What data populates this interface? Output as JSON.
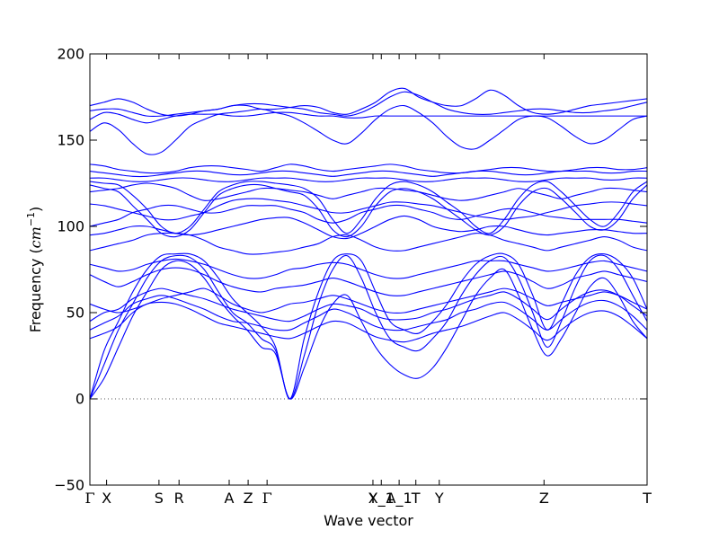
{
  "chart_data": {
    "type": "line",
    "title": "",
    "xlabel": "Wave vector",
    "ylabel": "Frequency",
    "ylabel_unit_base": "cm",
    "ylabel_unit_exp": "−1",
    "ylim": [
      -50,
      200
    ],
    "y_ticks": [
      -50,
      0,
      50,
      100,
      150,
      200
    ],
    "x_range": [
      0,
      1
    ],
    "grid": false,
    "legend": "none",
    "line_color": "#0000ff",
    "zero_line_color": "#555555",
    "high_symmetry_points": [
      {
        "label": "Γ",
        "x": 0.0
      },
      {
        "label": "X",
        "x": 0.03
      },
      {
        "label": "S",
        "x": 0.124
      },
      {
        "label": "R",
        "x": 0.16
      },
      {
        "label": "A",
        "x": 0.25
      },
      {
        "label": "Z",
        "x": 0.284
      },
      {
        "label": "Γ",
        "x": 0.318
      },
      {
        "label": "Y",
        "x": 0.508
      },
      {
        "label": "X_1",
        "x": 0.523
      },
      {
        "label": "A_1",
        "x": 0.555
      },
      {
        "label": "T",
        "x": 0.585
      },
      {
        "label": "Y",
        "x": 0.627
      },
      {
        "label": "Z",
        "x": 0.815
      },
      {
        "label": "T",
        "x": 1.0
      }
    ],
    "series": [
      {
        "values": [
          0,
          12,
          30,
          48,
          62,
          75,
          80,
          78,
          70,
          58,
          48,
          40,
          30,
          26,
          0,
          18,
          40,
          55,
          60,
          45,
          30,
          20,
          14,
          12,
          18,
          30,
          45,
          60,
          70,
          75,
          60,
          40,
          25,
          35,
          50,
          65,
          70,
          60,
          45,
          35
        ]
      },
      {
        "values": [
          0,
          20,
          40,
          55,
          70,
          80,
          83,
          82,
          75,
          62,
          50,
          44,
          35,
          28,
          0,
          25,
          55,
          75,
          83,
          70,
          50,
          35,
          30,
          28,
          35,
          45,
          60,
          72,
          80,
          82,
          70,
          50,
          30,
          45,
          65,
          80,
          83,
          75,
          60,
          45
        ]
      },
      {
        "values": [
          0,
          28,
          45,
          62,
          75,
          83,
          84,
          84,
          80,
          70,
          58,
          50,
          42,
          30,
          0,
          35,
          62,
          80,
          84,
          80,
          62,
          45,
          40,
          38,
          45,
          55,
          68,
          78,
          83,
          84,
          78,
          60,
          40,
          55,
          72,
          82,
          84,
          80,
          70,
          52
        ]
      },
      {
        "values": [
          35,
          38,
          42,
          50,
          55,
          56,
          55,
          52,
          48,
          44,
          42,
          40,
          38,
          36,
          35,
          38,
          42,
          45,
          44,
          40,
          36,
          34,
          33,
          35,
          38,
          40,
          42,
          45,
          48,
          50,
          46,
          40,
          34,
          40,
          46,
          50,
          51,
          48,
          42,
          35
        ]
      },
      {
        "values": [
          40,
          44,
          48,
          55,
          58,
          60,
          58,
          55,
          52,
          48,
          45,
          44,
          42,
          40,
          40,
          44,
          48,
          52,
          50,
          46,
          42,
          40,
          40,
          42,
          44,
          46,
          50,
          52,
          55,
          56,
          52,
          46,
          40,
          46,
          52,
          56,
          57,
          54,
          48,
          40
        ]
      },
      {
        "values": [
          45,
          50,
          52,
          58,
          62,
          64,
          62,
          60,
          58,
          55,
          52,
          50,
          48,
          46,
          45,
          48,
          52,
          55,
          54,
          52,
          48,
          46,
          46,
          47,
          50,
          52,
          55,
          58,
          60,
          62,
          58,
          52,
          46,
          52,
          58,
          62,
          63,
          60,
          54,
          48
        ]
      },
      {
        "values": [
          55,
          52,
          50,
          52,
          55,
          58,
          60,
          62,
          64,
          60,
          55,
          52,
          50,
          52,
          55,
          56,
          58,
          60,
          58,
          55,
          52,
          50,
          50,
          52,
          54,
          56,
          58,
          60,
          62,
          64,
          62,
          58,
          54,
          56,
          58,
          60,
          62,
          60,
          56,
          52
        ]
      },
      {
        "values": [
          72,
          68,
          65,
          68,
          72,
          75,
          76,
          75,
          72,
          68,
          65,
          63,
          62,
          64,
          65,
          66,
          68,
          70,
          68,
          65,
          62,
          60,
          60,
          62,
          64,
          66,
          68,
          70,
          72,
          74,
          72,
          68,
          64,
          66,
          70,
          72,
          74,
          72,
          70,
          68
        ]
      },
      {
        "values": [
          78,
          76,
          74,
          75,
          78,
          80,
          81,
          80,
          78,
          75,
          72,
          70,
          70,
          72,
          75,
          76,
          78,
          79,
          78,
          75,
          72,
          70,
          70,
          72,
          74,
          76,
          78,
          80,
          80,
          80,
          78,
          76,
          74,
          75,
          77,
          79,
          80,
          78,
          76,
          74
        ]
      },
      {
        "values": [
          86,
          88,
          90,
          92,
          95,
          96,
          96,
          95,
          92,
          88,
          86,
          84,
          84,
          85,
          86,
          88,
          90,
          94,
          95,
          92,
          88,
          86,
          86,
          88,
          90,
          92,
          94,
          96,
          95,
          92,
          90,
          88,
          86,
          88,
          90,
          92,
          94,
          92,
          88,
          86
        ]
      },
      {
        "values": [
          95,
          96,
          98,
          100,
          100,
          98,
          96,
          95,
          96,
          98,
          100,
          102,
          104,
          105,
          105,
          102,
          98,
          94,
          93,
          96,
          100,
          104,
          106,
          104,
          100,
          98,
          97,
          98,
          100,
          100,
          98,
          96,
          95,
          96,
          97,
          98,
          98,
          97,
          96,
          96
        ]
      },
      {
        "values": [
          100,
          102,
          104,
          108,
          110,
          112,
          112,
          110,
          108,
          108,
          110,
          112,
          112,
          112,
          110,
          108,
          104,
          102,
          104,
          108,
          110,
          112,
          112,
          110,
          108,
          105,
          104,
          106,
          108,
          110,
          110,
          108,
          106,
          105,
          104,
          104,
          104,
          104,
          103,
          102
        ]
      },
      {
        "values": [
          113,
          112,
          110,
          108,
          106,
          104,
          104,
          106,
          108,
          112,
          115,
          116,
          116,
          115,
          114,
          112,
          110,
          108,
          108,
          110,
          112,
          114,
          114,
          113,
          112,
          110,
          108,
          106,
          105,
          104,
          105,
          106,
          108,
          110,
          112,
          113,
          114,
          114,
          113,
          112
        ]
      },
      {
        "values": [
          120,
          121,
          122,
          124,
          125,
          124,
          122,
          118,
          115,
          116,
          118,
          120,
          122,
          122,
          121,
          120,
          118,
          116,
          118,
          120,
          122,
          122,
          121,
          120,
          118,
          116,
          115,
          116,
          118,
          120,
          122,
          120,
          118,
          116,
          118,
          120,
          122,
          122,
          121,
          120
        ]
      },
      {
        "values": [
          124,
          122,
          120,
          112,
          104,
          96,
          94,
          98,
          108,
          118,
          122,
          124,
          124,
          122,
          120,
          118,
          110,
          98,
          94,
          100,
          112,
          120,
          122,
          120,
          116,
          110,
          104,
          98,
          95,
          100,
          112,
          120,
          122,
          116,
          108,
          100,
          98,
          104,
          116,
          124
        ]
      },
      {
        "values": [
          126,
          125,
          124,
          118,
          110,
          100,
          96,
          100,
          110,
          120,
          124,
          126,
          126,
          125,
          124,
          122,
          116,
          104,
          96,
          104,
          116,
          124,
          126,
          124,
          120,
          114,
          108,
          100,
          96,
          104,
          116,
          124,
          126,
          120,
          112,
          104,
          100,
          108,
          120,
          126
        ]
      },
      {
        "values": [
          128,
          128,
          127,
          126,
          126,
          127,
          128,
          128,
          127,
          126,
          126,
          127,
          128,
          128,
          128,
          127,
          126,
          126,
          127,
          128,
          128,
          128,
          127,
          126,
          126,
          127,
          128,
          128,
          128,
          127,
          126,
          126,
          127,
          128,
          128,
          128,
          127,
          127,
          128,
          128
        ]
      },
      {
        "values": [
          132,
          131,
          130,
          129,
          129,
          130,
          131,
          132,
          132,
          131,
          130,
          130,
          131,
          132,
          132,
          131,
          130,
          129,
          130,
          131,
          132,
          132,
          131,
          130,
          129,
          130,
          131,
          132,
          132,
          131,
          130,
          130,
          131,
          132,
          132,
          132,
          131,
          131,
          132,
          132
        ]
      },
      {
        "values": [
          136,
          135,
          133,
          132,
          131,
          131,
          132,
          134,
          135,
          135,
          134,
          133,
          132,
          134,
          136,
          135,
          133,
          132,
          133,
          134,
          135,
          136,
          135,
          133,
          132,
          131,
          131,
          132,
          133,
          134,
          134,
          133,
          132,
          132,
          133,
          134,
          134,
          133,
          133,
          134
        ]
      },
      {
        "values": [
          155,
          160,
          156,
          148,
          142,
          143,
          150,
          158,
          162,
          165,
          166,
          167,
          168,
          166,
          164,
          160,
          155,
          150,
          148,
          154,
          162,
          168,
          170,
          166,
          160,
          152,
          146,
          145,
          150,
          156,
          162,
          164,
          163,
          158,
          152,
          148,
          150,
          156,
          162,
          164
        ]
      },
      {
        "values": [
          162,
          166,
          165,
          162,
          160,
          162,
          164,
          165,
          165,
          165,
          164,
          164,
          165,
          166,
          166,
          165,
          164,
          164,
          163,
          163,
          164,
          164,
          164,
          164,
          164,
          164,
          164,
          164,
          164,
          164,
          164,
          164,
          164,
          164,
          164,
          164,
          164,
          164,
          164,
          164
        ]
      },
      {
        "values": [
          167,
          168,
          168,
          166,
          164,
          164,
          165,
          166,
          167,
          168,
          170,
          171,
          171,
          170,
          169,
          168,
          166,
          165,
          164,
          166,
          170,
          175,
          178,
          176,
          172,
          168,
          166,
          165,
          165,
          166,
          167,
          168,
          168,
          167,
          166,
          166,
          167,
          168,
          170,
          172
        ]
      },
      {
        "values": [
          170,
          172,
          174,
          172,
          168,
          165,
          164,
          165,
          167,
          168,
          170,
          170,
          168,
          168,
          169,
          170,
          169,
          166,
          165,
          168,
          172,
          178,
          180,
          175,
          172,
          170,
          170,
          174,
          179,
          176,
          170,
          166,
          165,
          166,
          168,
          170,
          171,
          172,
          173,
          174
        ]
      }
    ]
  }
}
